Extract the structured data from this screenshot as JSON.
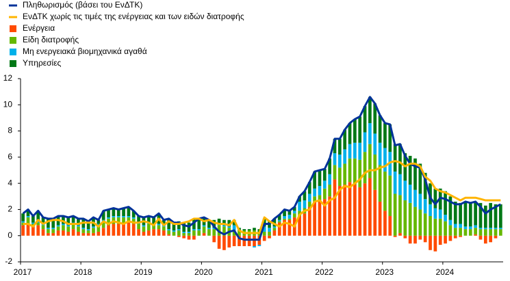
{
  "chart_data": {
    "type": "bar",
    "stacked": true,
    "categories": [
      "2017",
      null,
      null,
      null,
      null,
      null,
      null,
      null,
      null,
      null,
      null,
      null,
      "2018",
      null,
      null,
      null,
      null,
      null,
      null,
      null,
      null,
      null,
      null,
      null,
      "2019",
      null,
      null,
      null,
      null,
      null,
      null,
      null,
      null,
      null,
      null,
      null,
      "2020",
      null,
      null,
      null,
      null,
      null,
      null,
      null,
      null,
      null,
      null,
      null,
      "2021",
      null,
      null,
      null,
      null,
      null,
      null,
      null,
      null,
      null,
      null,
      null,
      "2022",
      null,
      null,
      null,
      null,
      null,
      null,
      null,
      null,
      null,
      null,
      null,
      "2023",
      null,
      null,
      null,
      null,
      null,
      null,
      null,
      null,
      null,
      null,
      null,
      "2024",
      null,
      null,
      null,
      null,
      null,
      null,
      null,
      null,
      null,
      null,
      null
    ],
    "ylim": [
      -2,
      12
    ],
    "yticks": [
      -2,
      0,
      2,
      4,
      6,
      8,
      10,
      12
    ],
    "series": [
      {
        "name": "Πληθωρισμός (βάσει του ΕνΔΤΚ)",
        "type": "line",
        "color": "#003299",
        "values": [
          1.7,
          2.0,
          1.5,
          1.9,
          1.4,
          1.3,
          1.3,
          1.5,
          1.5,
          1.4,
          1.5,
          1.3,
          1.3,
          1.1,
          1.4,
          1.2,
          1.9,
          2.0,
          2.1,
          2.0,
          2.1,
          2.2,
          1.9,
          1.5,
          1.4,
          1.5,
          1.4,
          1.7,
          1.2,
          1.3,
          1.0,
          1.0,
          0.8,
          0.7,
          1.0,
          1.3,
          1.4,
          1.2,
          0.7,
          0.3,
          0.1,
          0.3,
          0.4,
          -0.2,
          -0.3,
          -0.3,
          -0.3,
          -0.3,
          0.9,
          0.9,
          1.3,
          1.6,
          2.0,
          1.9,
          2.2,
          3.0,
          3.4,
          4.1,
          4.9,
          5.0,
          5.1,
          5.9,
          7.4,
          7.4,
          8.1,
          8.6,
          8.9,
          9.1,
          9.9,
          10.6,
          10.1,
          9.2,
          8.6,
          8.5,
          6.9,
          7.0,
          6.1,
          5.5,
          5.3,
          5.2,
          4.3,
          2.9,
          2.4,
          2.9,
          2.8,
          2.6,
          2.4,
          2.4,
          2.6,
          2.5,
          2.6,
          2.2,
          1.7,
          2.0,
          2.2,
          2.4
        ]
      },
      {
        "name": "ΕνΔΤΚ χωρίς τις τιμές της ενέργειας και των ειδών διατροφής",
        "type": "line",
        "color": "#ffb400",
        "values": [
          0.9,
          0.9,
          0.7,
          1.2,
          0.9,
          1.1,
          1.2,
          1.2,
          1.1,
          0.9,
          0.9,
          0.9,
          1.0,
          1.0,
          1.0,
          0.7,
          1.1,
          0.9,
          1.1,
          1.0,
          0.9,
          1.1,
          1.0,
          1.0,
          1.1,
          1.0,
          0.8,
          1.3,
          0.8,
          1.1,
          0.9,
          0.9,
          1.0,
          1.1,
          1.3,
          1.3,
          1.1,
          1.2,
          1.0,
          0.9,
          0.9,
          0.8,
          1.2,
          0.4,
          0.2,
          0.2,
          0.2,
          0.2,
          1.4,
          1.1,
          0.9,
          0.7,
          1.0,
          0.9,
          0.7,
          1.6,
          1.9,
          2.0,
          2.6,
          2.7,
          2.3,
          2.7,
          2.9,
          3.5,
          3.8,
          3.7,
          4.0,
          4.3,
          4.8,
          5.0,
          5.0,
          5.2,
          5.3,
          5.6,
          5.7,
          5.6,
          5.3,
          5.5,
          5.5,
          5.3,
          4.5,
          4.2,
          3.6,
          3.4,
          3.3,
          3.1,
          2.9,
          2.7,
          2.9,
          2.9,
          2.9,
          2.8,
          2.7,
          2.7,
          2.7,
          2.7
        ]
      },
      {
        "name": "Ενέργεια",
        "type": "bar",
        "color": "#ff4b00",
        "values": [
          0.8,
          0.9,
          0.7,
          0.8,
          0.5,
          0.2,
          0.2,
          0.4,
          0.4,
          0.3,
          0.5,
          0.3,
          0.2,
          0.2,
          0.2,
          0.3,
          0.6,
          0.8,
          0.9,
          0.9,
          0.9,
          1.0,
          0.9,
          0.5,
          0.3,
          0.4,
          0.5,
          0.5,
          0.4,
          0.1,
          0,
          -0.1,
          -0.2,
          -0.3,
          -0.3,
          0,
          0.2,
          0,
          -0.5,
          -1.0,
          -1.1,
          -0.9,
          -0.8,
          -0.8,
          -0.8,
          -0.8,
          -0.8,
          -0.7,
          -0.4,
          -0.2,
          0.4,
          1.0,
          1.2,
          1.2,
          1.4,
          1.5,
          1.7,
          2.2,
          2.6,
          2.6,
          2.8,
          3.0,
          4.3,
          3.8,
          3.9,
          4.1,
          3.9,
          3.7,
          4.0,
          4.4,
          3.5,
          2.6,
          1.9,
          1.5,
          -0.1,
          0.2,
          -0.2,
          -0.6,
          -0.6,
          -0.3,
          -0.5,
          -1.1,
          -1.2,
          -0.7,
          -0.6,
          -0.4,
          -0.2,
          -0.1,
          0,
          0,
          0.1,
          -0.3,
          -0.6,
          -0.5,
          -0.2,
          0
        ]
      },
      {
        "name": "Είδη διατροφής",
        "type": "bar",
        "color": "#65b800",
        "values": [
          0.2,
          0.5,
          0.2,
          0.2,
          0.3,
          0.3,
          0.3,
          0.3,
          0.4,
          0.4,
          0.4,
          0.4,
          0.3,
          0.2,
          0.4,
          0.5,
          0.5,
          0.5,
          0.5,
          0.5,
          0.5,
          0.4,
          0.4,
          0.4,
          0.4,
          0.5,
          0.3,
          0.3,
          0.3,
          0.3,
          0.3,
          0.4,
          0.2,
          0.2,
          0.4,
          0.4,
          0.5,
          0.5,
          0.5,
          0.8,
          0.7,
          0.6,
          0.4,
          0.4,
          0.4,
          0.4,
          0.4,
          0.3,
          0.3,
          0.3,
          0.2,
          0.1,
          0.1,
          0.1,
          0.3,
          0.4,
          0.4,
          0.4,
          0.4,
          0.5,
          0.8,
          0.9,
          1.1,
          1.4,
          1.6,
          1.8,
          2.0,
          2.1,
          2.4,
          2.6,
          2.7,
          2.8,
          3.0,
          3.1,
          3.2,
          2.9,
          2.7,
          2.5,
          2.2,
          2.0,
          1.7,
          1.5,
          1.3,
          1.3,
          1.1,
          0.8,
          0.6,
          0.6,
          0.5,
          0.5,
          0.5,
          0.5,
          0.5,
          0.5,
          0.5,
          0.5
        ]
      },
      {
        "name": "Μη ενεργειακά βιομηχανικά αγαθά",
        "type": "bar",
        "color": "#00b1ea",
        "values": [
          0.1,
          0.1,
          0.1,
          0.1,
          0.1,
          0.1,
          0.1,
          0.1,
          0.1,
          0.1,
          0.1,
          0.1,
          0.1,
          0.1,
          0.1,
          0.1,
          0.1,
          0.1,
          0.1,
          0.1,
          0.1,
          0.1,
          0.1,
          0.1,
          0.1,
          0.1,
          0.1,
          0.1,
          0.1,
          0.1,
          0.1,
          0.1,
          0.1,
          0.1,
          0.1,
          0.1,
          0.1,
          0.1,
          0.1,
          0.1,
          0.1,
          0.1,
          0.4,
          0,
          0,
          0,
          -0.1,
          -0.1,
          0.4,
          0.3,
          0.1,
          0.1,
          0.2,
          0.3,
          0.2,
          0.7,
          0.6,
          0.6,
          0.6,
          0.7,
          0.6,
          0.8,
          0.9,
          1.0,
          1.1,
          1.1,
          1.2,
          1.3,
          1.5,
          1.6,
          1.6,
          1.7,
          1.8,
          1.8,
          1.7,
          1.6,
          1.5,
          1.4,
          1.3,
          1.2,
          1.1,
          0.9,
          0.8,
          0.7,
          0.5,
          0.4,
          0.3,
          0.3,
          0.2,
          0.2,
          0.2,
          0.1,
          0.1,
          0.1,
          0.1,
          0.1
        ]
      },
      {
        "name": "Υπηρεσίες",
        "type": "bar",
        "color": "#007816",
        "values": [
          0.6,
          0.5,
          0.5,
          0.8,
          0.5,
          0.7,
          0.7,
          0.7,
          0.6,
          0.6,
          0.5,
          0.5,
          0.7,
          0.6,
          0.7,
          0.3,
          0.7,
          0.6,
          0.6,
          0.5,
          0.6,
          0.7,
          0.5,
          0.5,
          0.6,
          0.5,
          0.5,
          0.8,
          0.4,
          0.8,
          0.6,
          0.6,
          0.7,
          0.7,
          0.8,
          0.8,
          0.6,
          0.6,
          0.6,
          0.4,
          0.4,
          0.5,
          0.4,
          0.2,
          0.1,
          0.1,
          0.2,
          0.2,
          0.6,
          0.5,
          0.6,
          0.4,
          0.5,
          0.3,
          0.3,
          0.4,
          0.7,
          0.9,
          1.3,
          1.2,
          0.9,
          1.2,
          1.1,
          1.2,
          1.5,
          1.6,
          1.8,
          2.0,
          2.0,
          2.0,
          2.3,
          2.1,
          1.9,
          2.1,
          2.1,
          2.3,
          2.1,
          2.2,
          2.4,
          2.3,
          2.0,
          1.6,
          1.5,
          1.6,
          1.8,
          1.8,
          1.7,
          1.6,
          1.9,
          1.8,
          1.8,
          1.9,
          1.7,
          1.9,
          1.8,
          1.8
        ]
      }
    ]
  }
}
